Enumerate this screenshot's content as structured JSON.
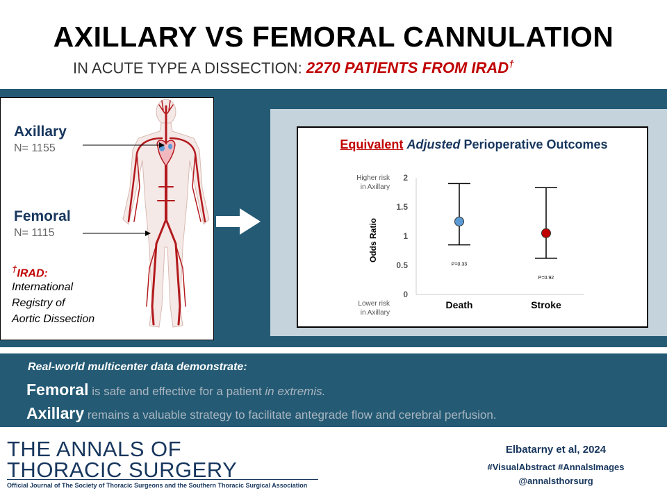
{
  "header": {
    "title": "AXILLARY VS FEMORAL CANNULATION",
    "subtitle_prefix": "IN ACUTE TYPE A DISSECTION:",
    "subtitle_highlight": "2270 PATIENTS FROM IRAD",
    "subtitle_mark": "†"
  },
  "left_panel": {
    "axillary_label": "Axillary",
    "axillary_n": "N= 1155",
    "femoral_label": "Femoral",
    "femoral_n": "N= 1115",
    "irad_mark": "†",
    "irad_title": "IRAD:",
    "irad_lines": [
      "International",
      "Registry of",
      "Aortic Dissection"
    ]
  },
  "chart_panel": {
    "title_equivalent": "Equivalent",
    "title_adjusted": "Adjusted",
    "title_rest": "Perioperative Outcomes",
    "higher_risk": [
      "Higher risk",
      "in Axillary"
    ],
    "lower_risk": [
      "Lower risk",
      "in Axillary"
    ]
  },
  "chart_data": {
    "type": "scatter",
    "ylabel": "Odds Ratio",
    "ylim": [
      0,
      2
    ],
    "yticks": [
      "0",
      "0.5",
      "1",
      "1.5",
      "2"
    ],
    "categories": [
      "Death",
      "Stroke"
    ],
    "points": [
      {
        "category": "Death",
        "value": 1.25,
        "lower": 0.85,
        "upper": 1.9,
        "p_label": "P=0.33",
        "color": "#5b9bd5"
      },
      {
        "category": "Stroke",
        "value": 1.05,
        "lower": 0.62,
        "upper": 1.83,
        "p_label": "P=0.92",
        "color": "#c00000"
      }
    ]
  },
  "conclusions": {
    "intro": "Real-world multicenter data demonstrate:",
    "femoral_bold": "Femoral",
    "femoral_text": "is safe and effective for a patient",
    "femoral_italic": "in extremis.",
    "axillary_bold": "Axillary",
    "axillary_text": "remains a valuable strategy to facilitate antegrade flow and cerebral perfusion."
  },
  "footer": {
    "journal_line1": "THE ANNALS OF",
    "journal_line2": "THORACIC SURGERY",
    "journal_sub": "Official Journal of The Society of Thoracic Surgeons and the Southern Thoracic Surgical Association",
    "citation": "Elbatarny et al, 2024",
    "hashtags": "#VisualAbstract #AnnalsImages",
    "handle": "@annalsthorsurg"
  },
  "colors": {
    "band": "#245a74",
    "navy": "#17365d",
    "accent_red": "#c00000",
    "vessel_red": "#b3191d"
  }
}
